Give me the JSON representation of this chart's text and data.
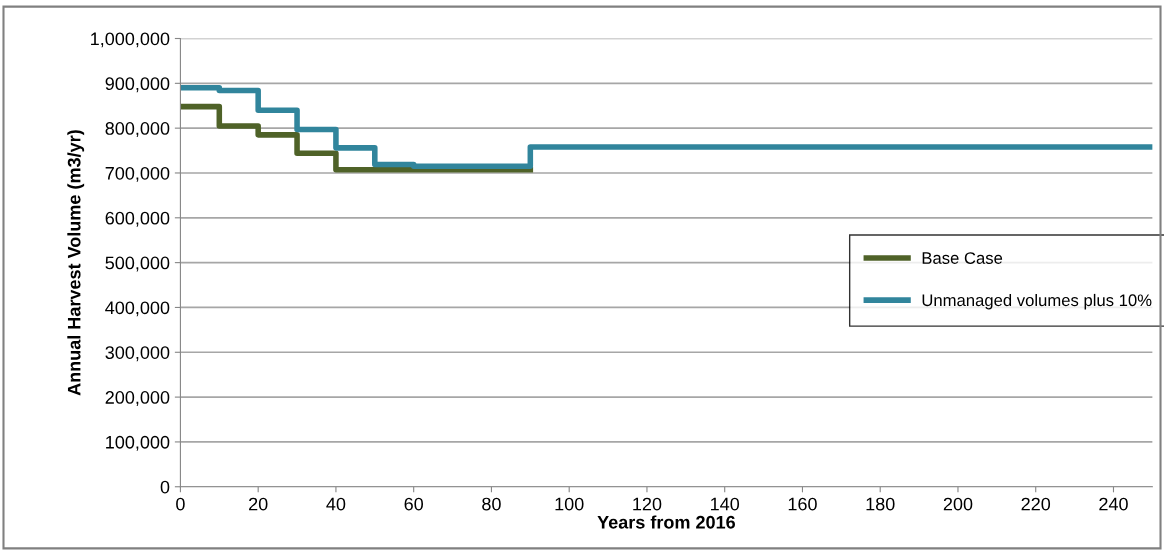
{
  "chart_data": {
    "type": "step",
    "xlabel": "Years from 2016",
    "ylabel": "Annual Harvest Volume (m3/yr)",
    "xlim": [
      0,
      250
    ],
    "xticks": [
      0,
      20,
      40,
      60,
      80,
      100,
      120,
      140,
      160,
      180,
      200,
      220,
      240
    ],
    "ylim": [
      0,
      1000000
    ],
    "yticks": [
      {
        "value": 0,
        "label": "0"
      },
      {
        "value": 100000,
        "label": "100,000"
      },
      {
        "value": 200000,
        "label": "200,000"
      },
      {
        "value": 300000,
        "label": "300,000"
      },
      {
        "value": 400000,
        "label": "400,000"
      },
      {
        "value": 500000,
        "label": "500,000"
      },
      {
        "value": 600000,
        "label": "600,000"
      },
      {
        "value": 700000,
        "label": "700,000"
      },
      {
        "value": 800000,
        "label": "800,000"
      },
      {
        "value": 900000,
        "label": "900,000"
      },
      {
        "value": 1000000,
        "label": "1,000,000"
      }
    ],
    "grid": "y",
    "legend": "right",
    "marker": "none",
    "line_style": "solid",
    "series": [
      {
        "name": "Base Case",
        "color": "#4f6228",
        "x": [
          0,
          10,
          20,
          30,
          40,
          90
        ],
        "values": [
          848000,
          805000,
          785000,
          744000,
          707000,
          707000
        ]
      },
      {
        "name": "Unmanaged volumes plus 10%",
        "color": "#31859c",
        "x": [
          0,
          10,
          20,
          30,
          40,
          50,
          60,
          90,
          250
        ],
        "values": [
          890000,
          884000,
          840000,
          797000,
          756000,
          719000,
          715000,
          758000,
          758000
        ]
      }
    ]
  }
}
